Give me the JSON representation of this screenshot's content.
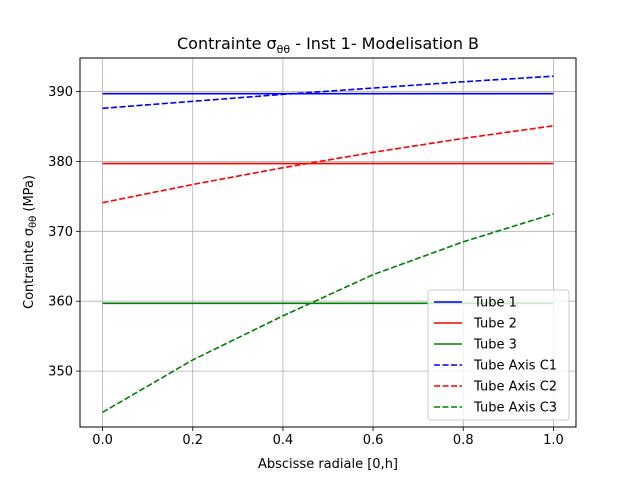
{
  "chart_data": {
    "type": "line",
    "title": "Contrainte σθθ - Inst 1- Modelisation B",
    "title_parts": {
      "prefix": "Contrainte σ",
      "sub": "θθ",
      "suffix": " - Inst 1- Modelisation B"
    },
    "xlabel": "Abscisse radiale [0,h]",
    "ylabel": "Contrainte σθθ (MPa)",
    "ylabel_parts": {
      "prefix": "Contrainte σ",
      "sub": "θθ",
      "suffix": " (MPa)"
    },
    "xlim": [
      -0.05,
      1.05
    ],
    "ylim": [
      342,
      394.8
    ],
    "xticks": [
      0.0,
      0.2,
      0.4,
      0.6,
      0.8,
      1.0
    ],
    "xtick_labels": [
      "0.0",
      "0.2",
      "0.4",
      "0.6",
      "0.8",
      "1.0"
    ],
    "yticks": [
      350,
      360,
      370,
      380,
      390
    ],
    "ytick_labels": [
      "350",
      "360",
      "370",
      "380",
      "390"
    ],
    "grid": true,
    "legend_position": "lower-right",
    "series": [
      {
        "name": "Tube 1",
        "color": "#0000ff",
        "dash": "solid",
        "x": [
          0,
          1
        ],
        "y": [
          389.7,
          389.7
        ]
      },
      {
        "name": "Tube 2",
        "color": "#ff0000",
        "dash": "solid",
        "x": [
          0,
          1
        ],
        "y": [
          379.7,
          379.7
        ]
      },
      {
        "name": "Tube 3",
        "color": "#008000",
        "dash": "solid",
        "x": [
          0,
          1
        ],
        "y": [
          359.7,
          359.7
        ]
      },
      {
        "name": "Tube Axis C1",
        "color": "#0000ff",
        "dash": "dashed",
        "x": [
          0,
          0.2,
          0.4,
          0.6,
          0.8,
          1.0
        ],
        "y": [
          387.6,
          388.6,
          389.6,
          390.5,
          391.4,
          392.2
        ]
      },
      {
        "name": "Tube Axis C2",
        "color": "#ff0000",
        "dash": "dashed",
        "x": [
          0,
          0.2,
          0.4,
          0.6,
          0.8,
          1.0
        ],
        "y": [
          374.1,
          376.7,
          379.1,
          381.3,
          383.3,
          385.1
        ]
      },
      {
        "name": "Tube Axis C3",
        "color": "#008000",
        "dash": "dashed",
        "x": [
          0,
          0.2,
          0.4,
          0.6,
          0.8,
          1.0
        ],
        "y": [
          344.1,
          351.6,
          357.9,
          363.8,
          368.5,
          372.5
        ]
      }
    ]
  }
}
